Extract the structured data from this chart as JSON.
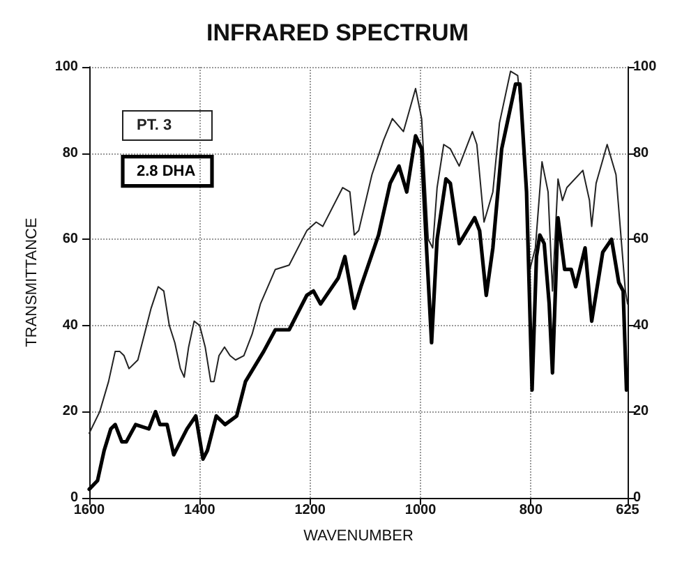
{
  "chart_data": {
    "type": "line",
    "title": "INFRARED SPECTRUM",
    "xlabel": "WAVENUMBER",
    "ylabel": "TRANSMITTANCE",
    "xlim": [
      1600,
      625
    ],
    "xticks": [
      1600,
      1400,
      1200,
      1000,
      800,
      625
    ],
    "ylim": [
      0,
      100
    ],
    "yticks": [
      0,
      20,
      40,
      60,
      80,
      100
    ],
    "y2lim": [
      0,
      100
    ],
    "y2ticks": [
      0,
      20,
      40,
      60,
      80,
      100
    ],
    "grid": true,
    "legend": "top left",
    "marker": "none",
    "line_style": "solid",
    "series": [
      {
        "name": "PT. 3",
        "color": "#222222",
        "x": [
          1600,
          1581,
          1565,
          1553,
          1545,
          1537,
          1528,
          1512,
          1500,
          1488,
          1475,
          1465,
          1455,
          1445,
          1435,
          1428,
          1420,
          1410,
          1400,
          1390,
          1380,
          1374,
          1365,
          1355,
          1345,
          1335,
          1320,
          1305,
          1290,
          1263,
          1238,
          1206,
          1189,
          1177,
          1141,
          1128,
          1120,
          1112,
          1088,
          1067,
          1051,
          1031,
          1009,
          998,
          986,
          978,
          970,
          958,
          946,
          930,
          906,
          898,
          885,
          869,
          857,
          837,
          824,
          812,
          802,
          792,
          780,
          769,
          761,
          751,
          743,
          735,
          706,
          694,
          690,
          682,
          662,
          646,
          629,
          625
        ],
        "values": [
          15,
          20,
          27,
          34,
          34,
          33,
          30,
          32,
          38,
          44,
          49,
          48,
          40,
          36,
          30,
          28,
          35,
          41,
          40,
          35,
          27,
          27,
          33,
          35,
          33,
          32,
          33,
          38,
          45,
          53,
          54,
          62,
          64,
          63,
          72,
          71,
          61,
          62,
          75,
          83,
          88,
          85,
          95,
          88,
          60,
          58,
          72,
          82,
          81,
          77,
          85,
          82,
          64,
          71,
          87,
          99,
          98,
          81,
          53,
          58,
          78,
          71,
          48,
          74,
          69,
          72,
          76,
          69,
          63,
          73,
          82,
          75,
          48,
          45
        ]
      },
      {
        "name": "2.8 DHA",
        "color": "#000000",
        "x": [
          1600,
          1585,
          1573,
          1561,
          1553,
          1541,
          1533,
          1516,
          1492,
          1480,
          1472,
          1459,
          1447,
          1439,
          1423,
          1407,
          1394,
          1386,
          1370,
          1354,
          1333,
          1317,
          1284,
          1263,
          1238,
          1206,
          1194,
          1181,
          1149,
          1137,
          1120,
          1108,
          1076,
          1055,
          1039,
          1025,
          1009,
          998,
          990,
          980,
          970,
          954,
          946,
          930,
          902,
          893,
          881,
          869,
          853,
          828,
          820,
          808,
          798,
          790,
          784,
          776,
          767,
          761,
          751,
          739,
          727,
          719,
          702,
          690,
          670,
          654,
          641,
          633,
          627
        ],
        "values": [
          2,
          4,
          11,
          16,
          17,
          13,
          13,
          17,
          16,
          20,
          17,
          17,
          10,
          12,
          16,
          19,
          9,
          11,
          19,
          17,
          19,
          27,
          34,
          39,
          39,
          47,
          48,
          45,
          51,
          56,
          44,
          49,
          61,
          73,
          77,
          71,
          84,
          81,
          60,
          36,
          60,
          74,
          73,
          59,
          65,
          62,
          47,
          58,
          81,
          96,
          96,
          71,
          25,
          56,
          61,
          59,
          45,
          29,
          65,
          53,
          53,
          49,
          58,
          41,
          57,
          60,
          50,
          48,
          25
        ]
      }
    ]
  }
}
